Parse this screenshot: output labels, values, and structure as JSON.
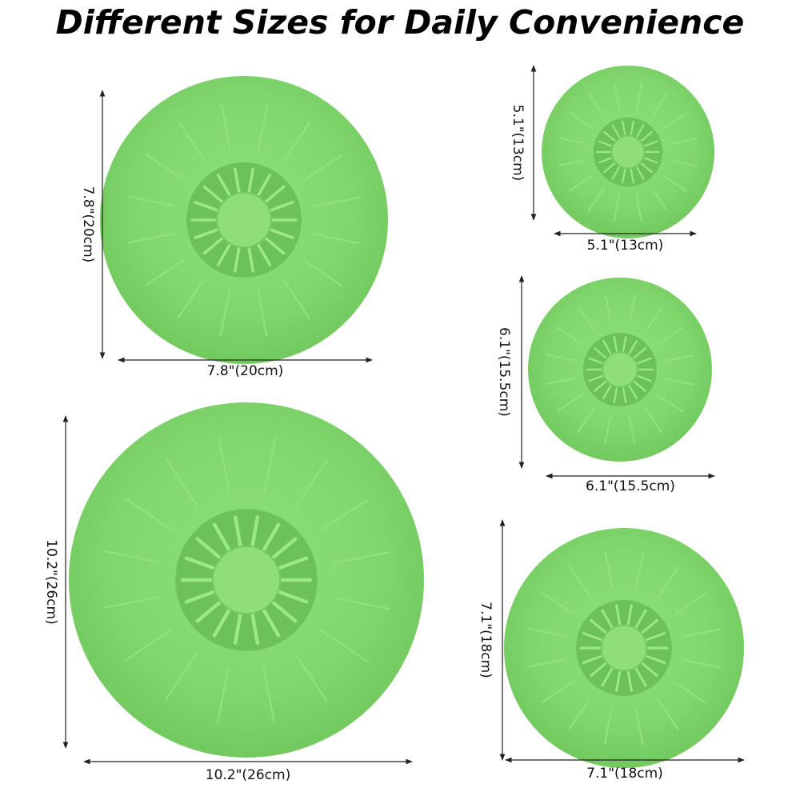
{
  "header": {
    "title": "Different Sizes for Daily Convenience"
  },
  "lids": [
    {
      "height_label": "7.8\"(20cm)",
      "width_label": "7.8\"(20cm)"
    },
    {
      "height_label": "10.2\"(26cm)",
      "width_label": "10.2\"(26cm)"
    },
    {
      "height_label": "5.1\"(13cm)",
      "width_label": "5.1\"(13cm)"
    },
    {
      "height_label": "6.1\"(15.5cm)",
      "width_label": "6.1\"(15.5cm)"
    },
    {
      "height_label": "7.1\"(18cm)",
      "width_label": "7.1\"(18cm)"
    }
  ]
}
